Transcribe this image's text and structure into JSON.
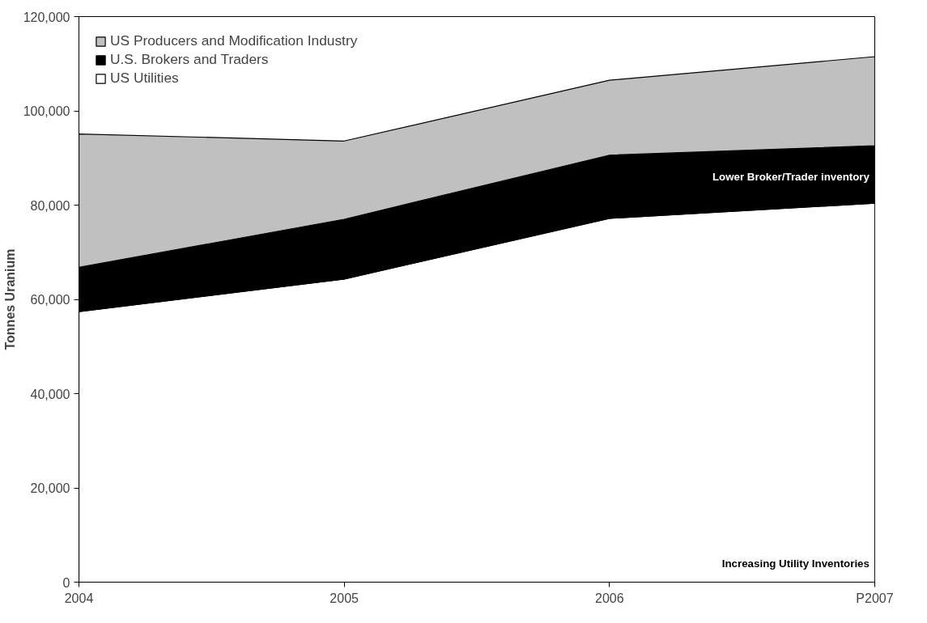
{
  "chart_data": {
    "type": "area",
    "stacked": true,
    "ylabel": "Tonnes Uranium",
    "categories": [
      "2004",
      "2005",
      "2006",
      "P2007"
    ],
    "series": [
      {
        "name": "US Utilities",
        "color": "#ffffff",
        "values": [
          57400,
          64300,
          77200,
          80400
        ]
      },
      {
        "name": "U.S. Brokers and Traders",
        "color": "#000000",
        "values": [
          9400,
          12700,
          13400,
          12200
        ]
      },
      {
        "name": "US Producers and Modification Industry",
        "color": "#c0c0c0",
        "values": [
          28300,
          16600,
          15900,
          18900
        ]
      }
    ],
    "ylim": [
      0,
      120000
    ],
    "yticks": [
      0,
      {
        "value": 20000,
        "label": "20,000"
      },
      {
        "value": 40000,
        "label": "40,000"
      },
      {
        "value": 60000,
        "label": "60,000"
      },
      {
        "value": 80000,
        "label": "80,000"
      },
      {
        "value": 100000,
        "label": "100,000"
      },
      {
        "value": 120000,
        "label": "120,000"
      }
    ],
    "grid": false,
    "legend": "top left",
    "annotations": [
      {
        "text": "Lower Broker/Trader inventory",
        "x": "P2007",
        "y": 86000
      },
      {
        "text": "Increasing Utility Inventories",
        "x": "P2007",
        "y": 4000
      }
    ]
  }
}
